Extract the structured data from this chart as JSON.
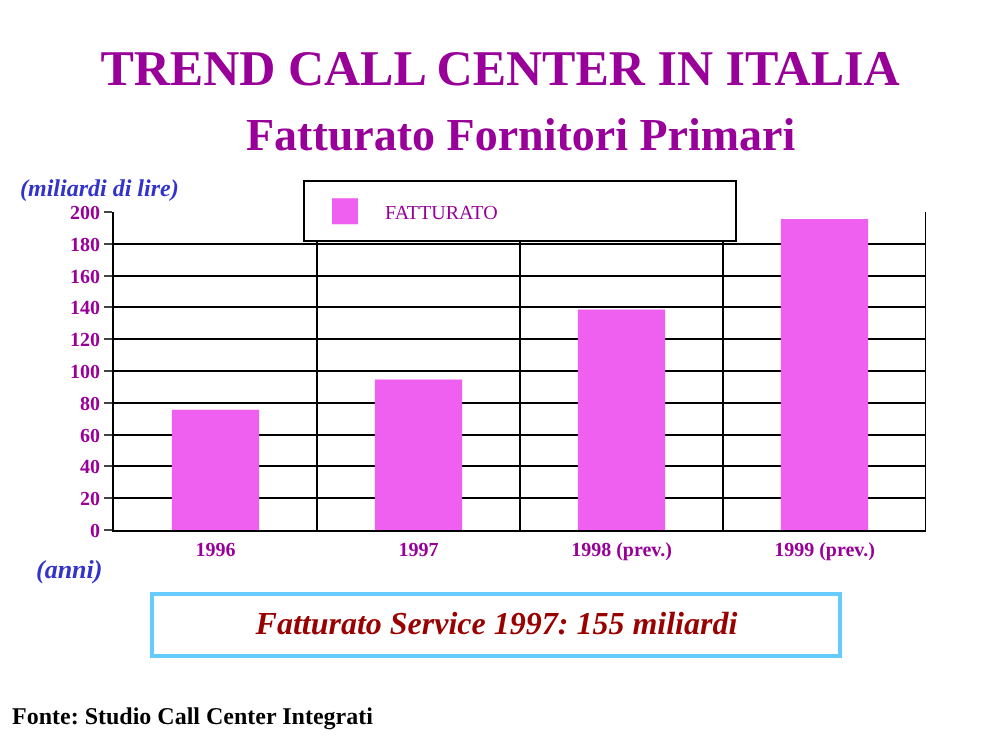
{
  "chart_data": {
    "type": "bar",
    "title": "TREND CALL CENTER IN ITALIA",
    "subtitle": "Fatturato Fornitori Primari",
    "ylabel": "(miliardi di lire)",
    "xlabel": "(anni)",
    "categories": [
      "1996",
      "1997",
      "1998 (prev.)",
      "1999 (prev.)"
    ],
    "series": [
      {
        "name": "FATTURATO",
        "color": "#f060f0",
        "values": [
          75,
          94,
          138,
          195
        ]
      }
    ],
    "ylim": [
      0,
      200
    ],
    "yticks": [
      0,
      20,
      40,
      60,
      80,
      100,
      120,
      140,
      160,
      180,
      200
    ],
    "grid": true,
    "legend": "top",
    "annotations": [
      "Fatturato Service 1997: 155 miliardi",
      "Fonte: Studio Call Center Integrati"
    ]
  }
}
